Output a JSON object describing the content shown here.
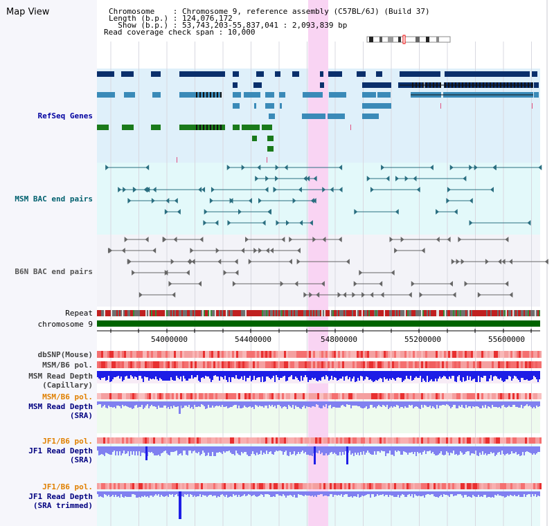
{
  "page": {
    "title": "Map View"
  },
  "header": {
    "line1": "Chromosome    : Chromosome 9, reference assembly (C57BL/6J) (Build 37)",
    "line2": "Length (b.p.) : 124,076,172",
    "line3": "  Show (b.p.) : 53,743,203-55,837,041 : 2,093,839 bp",
    "line4": "Read coverage check span : 10,000"
  },
  "tracks": {
    "refseq": "RefSeq Genes",
    "msm_bac": "MSM BAC end pairs",
    "b6n_bac": "B6N BAC end pairs",
    "repeat": "Repeat",
    "chromosome": "chromosome 9",
    "dbsnp": "dbSNP(Mouse)",
    "msm_b6_pol_1": "MSM/B6 pol.",
    "msm_depth_cap_1": "MSM Read Depth",
    "msm_depth_cap_2": "(Capillary)",
    "msm_b6_pol_2": "MSM/B6 pol.",
    "msm_depth_sra_1": "MSM Read Depth",
    "msm_depth_sra_2": "(SRA)",
    "jf1_b6_pol_1": "JF1/B6 pol.",
    "jf1_depth_sra_1": "JF1 Read Depth",
    "jf1_depth_sra_2": "(SRA)",
    "jf1_b6_pol_2": "JF1/B6 pol.",
    "jf1_depth_trim_1": "JF1 Read Depth",
    "jf1_depth_trim_2": "(SRA trimmed)"
  },
  "axis": {
    "ticks": [
      "54000000",
      "54400000",
      "54800000",
      "55200000",
      "55600000"
    ]
  },
  "colors": {
    "refseq_bg": "#dff0fa",
    "msm_bg": "#e3f9fa",
    "b6n_bg": "#f3f3f8",
    "highlight": "#f9d4f3",
    "chromosome": "#006400",
    "gene_dark": "#0a2f6b",
    "gene_mid": "#3a8ab8",
    "gene_green": "#1a7a1a",
    "bac_teal": "#2a6e80",
    "bac_grey": "#666666",
    "depth_blue": "#1e1ee6",
    "depth_light": "#8080f0",
    "pol_red": "#f06060"
  }
}
